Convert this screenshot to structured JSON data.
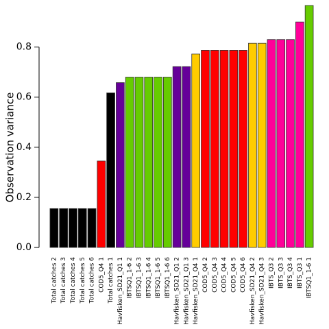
{
  "chart_data": {
    "type": "bar",
    "ylabel": "Observation variance",
    "categories": [
      "Total catches 2",
      "Total catches 3",
      "Total catches 4",
      "Total catches 5",
      "Total catches 6",
      "COD5_Q4 1",
      "Total catches 1",
      "Havfisken_SD21_Q1 1",
      "IBTSQ1_1-6 2",
      "IBTSQ1_1-6 3",
      "IBTSQ1_1-6 4",
      "IBTSQ1_1-6 5",
      "IBTSQ1_1-6 6",
      "Havfisken_SD21_Q1 2",
      "Havfisken_SD21_Q1 3",
      "Havfisken_SD21_Q4 1",
      "COD5_Q4 2",
      "COD5_Q4 3",
      "COD5_Q4 4",
      "COD5_Q4 5",
      "COD5_Q4 6",
      "Havfisken_SD21_Q4 2",
      "Havfisken_SD21_Q4 3",
      "IBTS_Q3 2",
      "IBTS_Q3 3",
      "IBTS_Q3 4",
      "IBTS_Q3 1",
      "IBTSQ1_1-6 1"
    ],
    "values": [
      0.155,
      0.155,
      0.155,
      0.155,
      0.155,
      0.345,
      0.617,
      0.658,
      0.68,
      0.68,
      0.68,
      0.68,
      0.68,
      0.722,
      0.722,
      0.772,
      0.787,
      0.787,
      0.787,
      0.787,
      0.787,
      0.815,
      0.815,
      0.83,
      0.83,
      0.83,
      0.9,
      0.966
    ],
    "colors": [
      "#000000",
      "#000000",
      "#000000",
      "#000000",
      "#000000",
      "#ff0000",
      "#000000",
      "#660099",
      "#66cc00",
      "#66cc00",
      "#66cc00",
      "#66cc00",
      "#66cc00",
      "#660099",
      "#660099",
      "#ffcc00",
      "#ff0000",
      "#ff0000",
      "#ff0000",
      "#ff0000",
      "#ff0000",
      "#ffcc00",
      "#ffcc00",
      "#ff0099",
      "#ff0099",
      "#ff0099",
      "#ff0099",
      "#66cc00"
    ],
    "ylim": [
      0,
      0.966
    ],
    "yticks": [
      {
        "value": 0,
        "label": "0.0"
      },
      {
        "value": 0.2,
        "label": "0.2"
      },
      {
        "value": 0.4,
        "label": "0.4"
      },
      {
        "value": 0.6,
        "label": "0.6"
      },
      {
        "value": 0.8,
        "label": "0.8"
      }
    ]
  }
}
